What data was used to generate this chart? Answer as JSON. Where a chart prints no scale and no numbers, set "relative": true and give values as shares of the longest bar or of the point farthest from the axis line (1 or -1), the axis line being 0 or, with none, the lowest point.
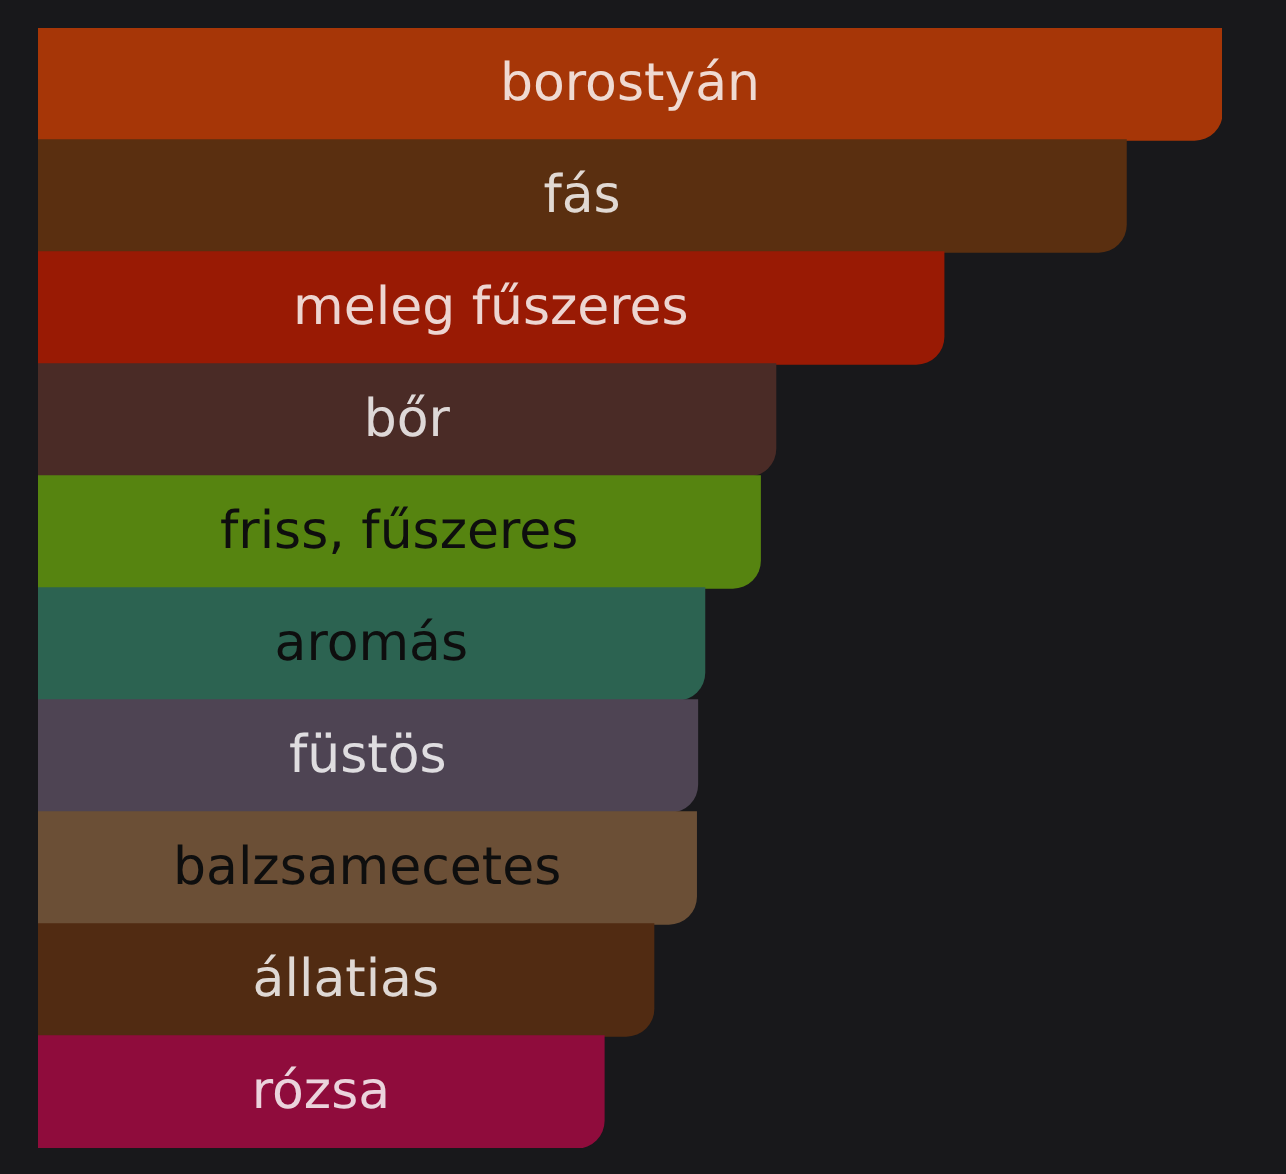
{
  "chart_data": {
    "type": "bar",
    "orientation": "horizontal",
    "relative": true,
    "categories": [
      "borostyán",
      "fás",
      "meleg fűszeres",
      "bőr",
      "friss, fűszeres",
      "aromás",
      "füstös",
      "balzsamecetes",
      "állatias",
      "rózsa"
    ],
    "values": [
      1,
      0.919,
      0.765,
      0.623,
      0.61,
      0.563,
      0.557,
      0.556,
      0.52,
      0.478
    ],
    "colors": [
      "#a63607",
      "#5a2f10",
      "#991a04",
      "#4a2b26",
      "#568410",
      "#2c6351",
      "#4e4453",
      "#6b4f36",
      "#512b12",
      "#8f0c3c"
    ]
  }
}
